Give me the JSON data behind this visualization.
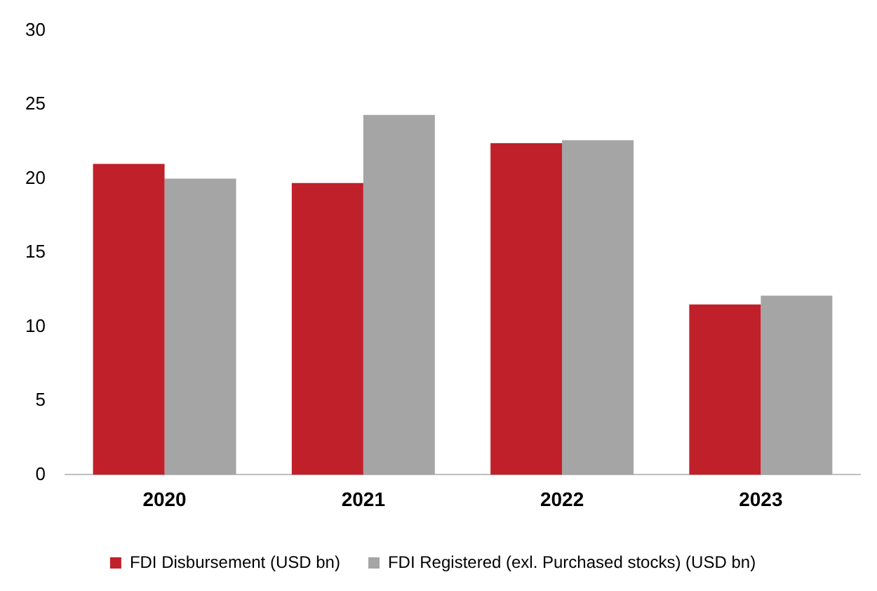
{
  "chart_data": {
    "type": "bar",
    "categories": [
      "2020",
      "2021",
      "2022",
      "2023"
    ],
    "series": [
      {
        "name": "FDI Disbursement (USD bn)",
        "color": "#c0202a",
        "values": [
          21.0,
          19.7,
          22.4,
          11.5
        ]
      },
      {
        "name": "FDI Registered (exl. Purchased stocks) (USD bn)",
        "color": "#a5a5a5",
        "values": [
          20.0,
          24.3,
          22.6,
          12.1
        ]
      }
    ],
    "ylim": [
      0,
      30
    ],
    "yticks": [
      0,
      5,
      10,
      15,
      20,
      25,
      30
    ],
    "grid": false,
    "legend": "bottom"
  }
}
